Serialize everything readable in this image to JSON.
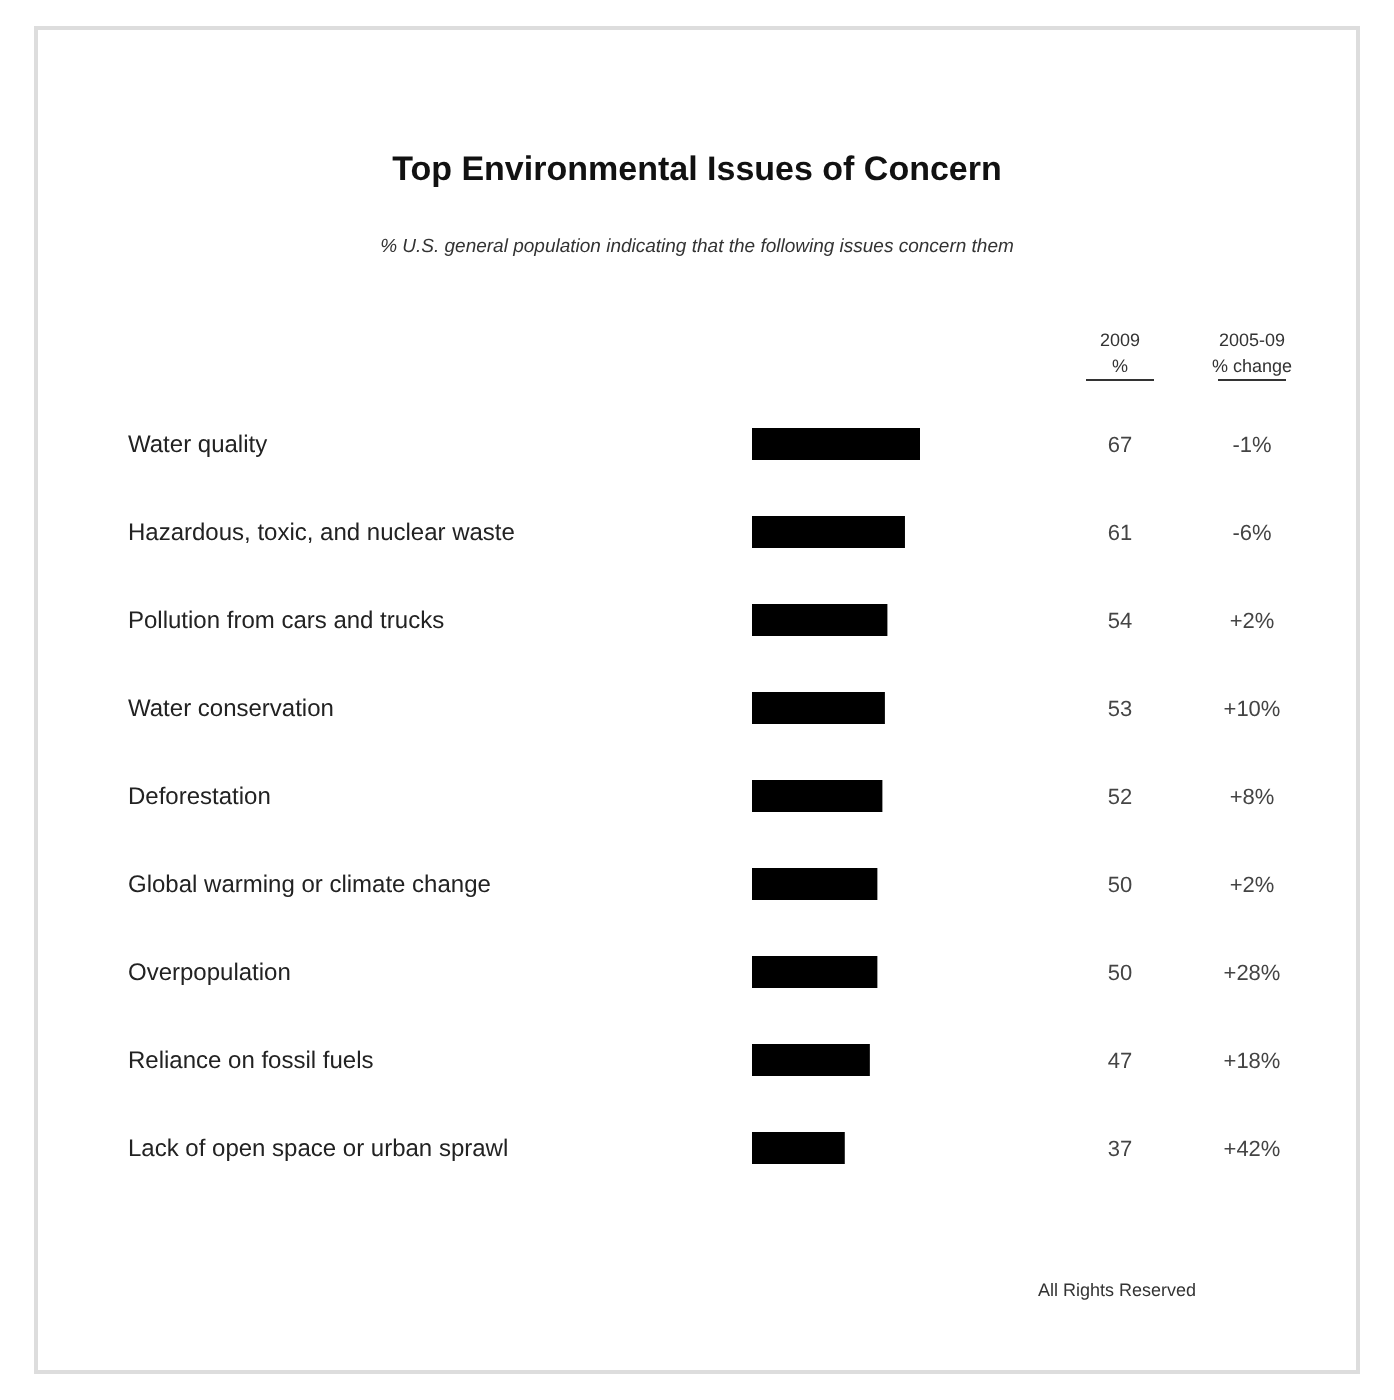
{
  "chart_data": {
    "type": "bar",
    "orientation": "horizontal",
    "title": "Top Environmental Issues of Concern",
    "subtitle": "% U.S. general population indicating that the following issues concern them",
    "categories": [
      "Water quality",
      "Hazardous, toxic, and nuclear waste",
      "Pollution from cars and trucks",
      "Water conservation",
      "Deforestation",
      "Global warming or climate change",
      "Overpopulation",
      "Reliance on fossil fuels",
      "Lack of open space or urban sprawl"
    ],
    "values": [
      67,
      61,
      54,
      53,
      52,
      50,
      50,
      47,
      37
    ],
    "color": "#000000",
    "data_labels": true,
    "annotations": [
      "2009 %",
      "2005-09 % change",
      "-1%",
      "-6%",
      "+2%",
      "+10%",
      "+8%",
      "+2%",
      "+28%",
      "+18%",
      "+42%",
      "All Rights Reserved"
    ]
  }
}
